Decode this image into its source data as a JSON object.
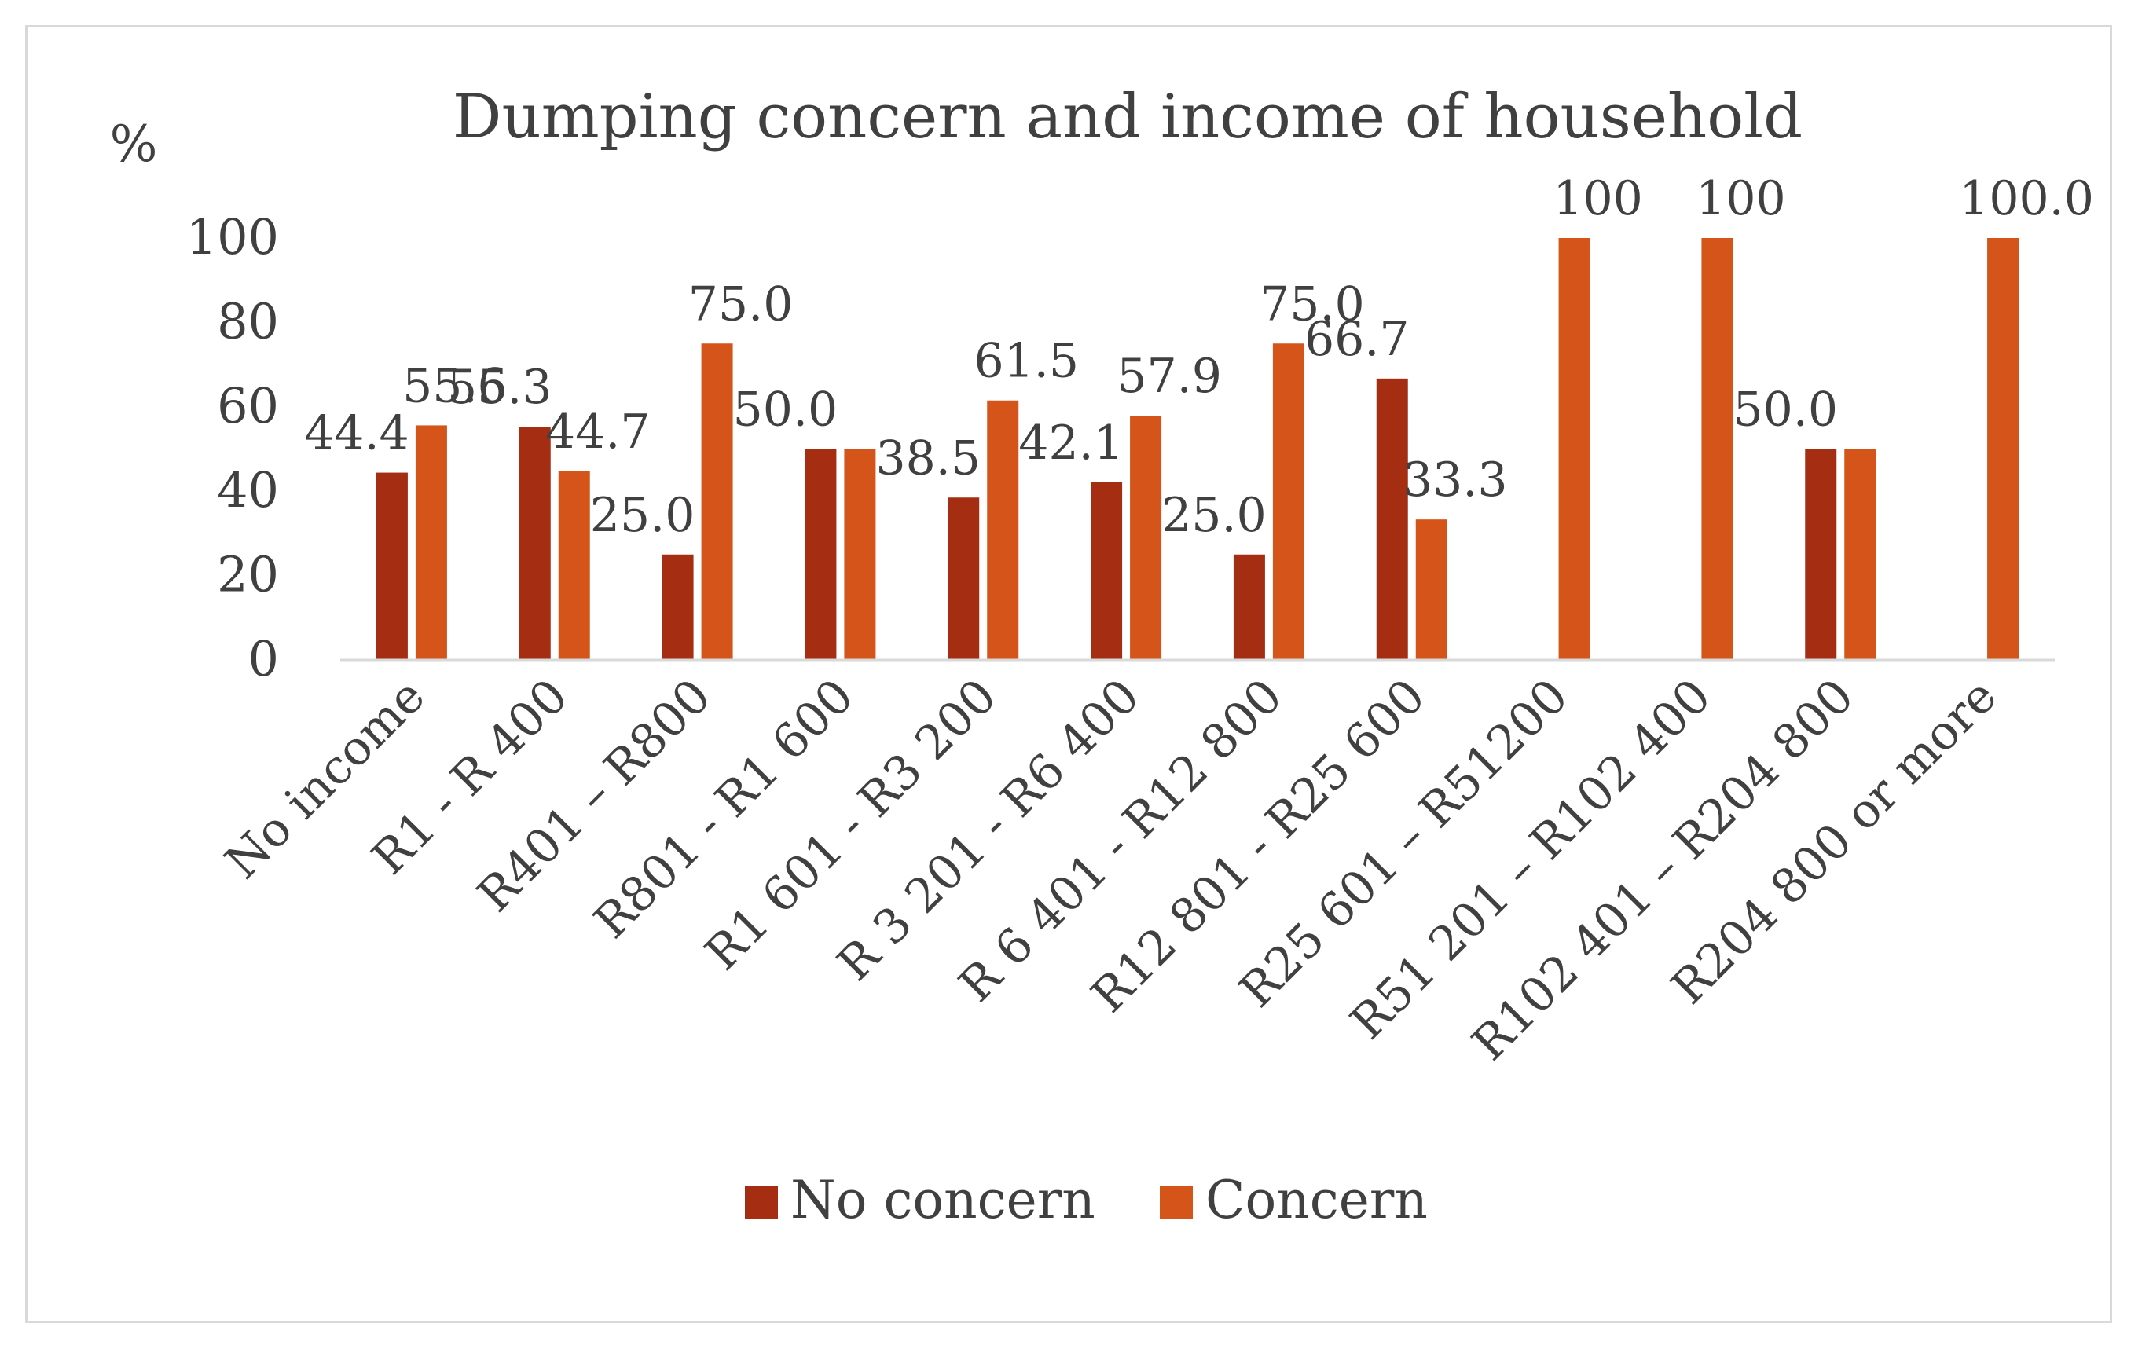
{
  "chart_data": {
    "type": "bar",
    "title": "Dumping concern and income of household",
    "ylabel": "%",
    "xlabel": "",
    "ylim": [
      0,
      100
    ],
    "yticks": [
      "0",
      "20",
      "40",
      "60",
      "80",
      "100"
    ],
    "grid": false,
    "legend_position": "bottom",
    "categories": [
      "No income",
      "R1 - R 400",
      "R401 – R800",
      "R801 - R1 600",
      "R1 601 - R3 200",
      "R 3 201 - R6 400",
      "R 6 401 - R12 800",
      "R12 801 - R25 600",
      "R25 601 – R51200",
      "R51 201 – R102 400",
      "R102 401 – R204 800",
      "R204 800 or more"
    ],
    "series": [
      {
        "name": "No concern",
        "color": "#a52d12",
        "values": [
          44.4,
          55.3,
          25.0,
          50.0,
          38.5,
          42.1,
          25.0,
          66.7,
          null,
          null,
          50.0,
          null
        ],
        "labels": [
          "44.4",
          "55.3",
          "25.0",
          "50.0",
          "38.5",
          "42.1",
          "25.0",
          "66.7",
          "",
          "",
          "50.0",
          ""
        ]
      },
      {
        "name": "Concern",
        "color": "#d4541a",
        "values": [
          55.6,
          44.7,
          75.0,
          50.0,
          61.5,
          57.9,
          75.0,
          33.3,
          100,
          100,
          50.0,
          100.0
        ],
        "labels": [
          "55.6",
          "44.7",
          "75.0",
          "",
          "61.5",
          "57.9",
          "75.0",
          "33.3",
          "100",
          "100",
          "",
          "100.0"
        ]
      }
    ]
  }
}
